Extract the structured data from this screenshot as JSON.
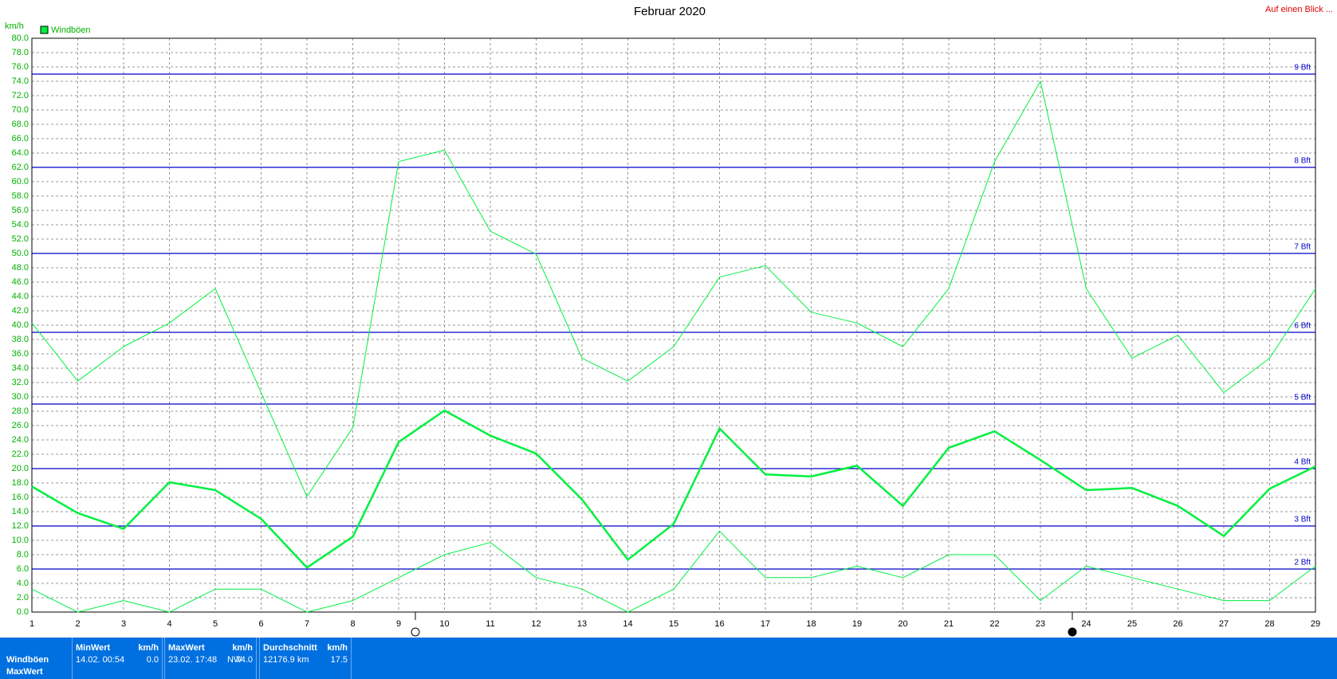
{
  "chart_data": {
    "type": "line",
    "title": "Februar 2020",
    "top_right_link": "Auf einen Blick ...",
    "y_label": "km/h",
    "legend": "upper-left",
    "grid": true,
    "x": [
      1,
      2,
      3,
      4,
      5,
      6,
      7,
      8,
      9,
      10,
      11,
      12,
      13,
      14,
      15,
      16,
      17,
      18,
      19,
      20,
      21,
      22,
      23,
      24,
      25,
      26,
      27,
      28,
      29
    ],
    "xlim": [
      1,
      29
    ],
    "xticks": [
      1,
      2,
      3,
      4,
      5,
      6,
      7,
      8,
      9,
      10,
      11,
      12,
      13,
      14,
      15,
      16,
      17,
      18,
      19,
      20,
      21,
      22,
      23,
      24,
      25,
      26,
      27,
      28,
      29
    ],
    "ylim": [
      0,
      80
    ],
    "yticks": [
      {
        "value": 0,
        "label": "0.0"
      },
      {
        "value": 2,
        "label": "2.0"
      },
      {
        "value": 4,
        "label": "4.0"
      },
      {
        "value": 6,
        "label": "6.0"
      },
      {
        "value": 8,
        "label": "8.0"
      },
      {
        "value": 10,
        "label": "10.0"
      },
      {
        "value": 12,
        "label": "12.0"
      },
      {
        "value": 14,
        "label": "14.0"
      },
      {
        "value": 16,
        "label": "16.0"
      },
      {
        "value": 18,
        "label": "18.0"
      },
      {
        "value": 20,
        "label": "20.0"
      },
      {
        "value": 22,
        "label": "22.0"
      },
      {
        "value": 24,
        "label": "24.0"
      },
      {
        "value": 26,
        "label": "26.0"
      },
      {
        "value": 28,
        "label": "28.0"
      },
      {
        "value": 30,
        "label": "30.0"
      },
      {
        "value": 32,
        "label": "32.0"
      },
      {
        "value": 34,
        "label": "34.0"
      },
      {
        "value": 36,
        "label": "36.0"
      },
      {
        "value": 38,
        "label": "38.0"
      },
      {
        "value": 40,
        "label": "40.0"
      },
      {
        "value": 42,
        "label": "42.0"
      },
      {
        "value": 44,
        "label": "44.0"
      },
      {
        "value": 46,
        "label": "46.0"
      },
      {
        "value": 48,
        "label": "48.0"
      },
      {
        "value": 50,
        "label": "50.0"
      },
      {
        "value": 52,
        "label": "52.0"
      },
      {
        "value": 54,
        "label": "54.0"
      },
      {
        "value": 56,
        "label": "56.0"
      },
      {
        "value": 58,
        "label": "58.0"
      },
      {
        "value": 60,
        "label": "60.0"
      },
      {
        "value": 62,
        "label": "62.0"
      },
      {
        "value": 64,
        "label": "64.0"
      },
      {
        "value": 66,
        "label": "66.0"
      },
      {
        "value": 68,
        "label": "68.0"
      },
      {
        "value": 70,
        "label": "70.0"
      },
      {
        "value": 72,
        "label": "72.0"
      },
      {
        "value": 74,
        "label": "74.0"
      },
      {
        "value": 76,
        "label": "76.0"
      },
      {
        "value": 78,
        "label": "78.0"
      },
      {
        "value": 80,
        "label": "80.0"
      }
    ],
    "reference_lines": [
      {
        "value": 6,
        "label": "2 Bft"
      },
      {
        "value": 12,
        "label": "3 Bft"
      },
      {
        "value": 20,
        "label": "4 Bft"
      },
      {
        "value": 29,
        "label": "5 Bft"
      },
      {
        "value": 39,
        "label": "6 Bft"
      },
      {
        "value": 50,
        "label": "7 Bft"
      },
      {
        "value": 62,
        "label": "8 Bft"
      },
      {
        "value": 75,
        "label": "9 Bft"
      }
    ],
    "reference_color": "#0000c8",
    "series": [
      {
        "name": "Windböen",
        "color": "#00f040",
        "width": 1,
        "values": [
          40.3,
          32.2,
          37.0,
          40.3,
          45.1,
          30.6,
          16.1,
          25.7,
          62.8,
          64.4,
          53.1,
          49.9,
          35.4,
          32.2,
          37.0,
          46.7,
          48.3,
          41.8,
          40.3,
          37.0,
          45.1,
          62.8,
          74.0,
          45.1,
          35.4,
          38.6,
          30.6,
          35.4,
          45.1
        ]
      },
      {
        "color": "#00f040",
        "width": 2.5,
        "values": [
          17.5,
          13.8,
          11.6,
          18.1,
          17.0,
          13.0,
          6.2,
          10.5,
          23.7,
          28.1,
          24.6,
          22.1,
          15.7,
          7.3,
          12.3,
          25.6,
          19.2,
          18.9,
          20.4,
          14.8,
          22.9,
          25.2,
          21.2,
          17.0,
          17.3,
          14.8,
          10.6,
          17.2,
          20.3
        ]
      },
      {
        "color": "#00f040",
        "width": 1,
        "values": [
          3.2,
          0,
          1.6,
          0,
          3.2,
          3.2,
          0,
          1.6,
          4.8,
          8.0,
          9.7,
          4.8,
          3.2,
          0,
          3.2,
          11.3,
          4.8,
          4.8,
          6.4,
          4.8,
          8.0,
          8.0,
          1.6,
          6.4,
          4.8,
          3.2,
          1.6,
          1.6,
          6.4
        ]
      }
    ]
  },
  "summary": {
    "row_labels": [
      "Windböen",
      "MaxWert"
    ],
    "min": {
      "header": "MinWert",
      "unit": "km/h",
      "date": "14.02. 00:54",
      "value": "0.0"
    },
    "max": {
      "header": "MaxWert",
      "unit": "km/h",
      "date": "23.02. 17:48",
      "direction": "NW",
      "value": "74.0"
    },
    "avg": {
      "header": "Durchschnitt",
      "unit": "km/h",
      "distance": "12176.9 km",
      "value": "17.5"
    }
  }
}
